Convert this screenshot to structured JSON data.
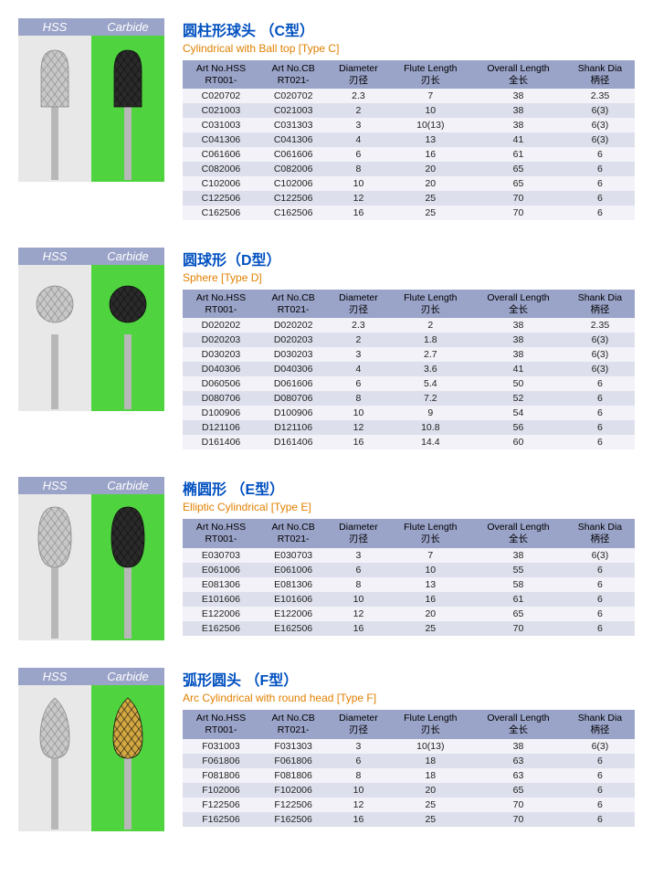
{
  "labels": {
    "hss": "HSS",
    "carbide": "Carbide"
  },
  "columns": [
    {
      "l1": "Art No.HSS",
      "l2": "RT001-"
    },
    {
      "l1": "Art No.CB",
      "l2": "RT021-"
    },
    {
      "l1": "Diameter",
      "l2": "刃径"
    },
    {
      "l1": "Flute Length",
      "l2": "刃长"
    },
    {
      "l1": "Overall Length",
      "l2": "全长"
    },
    {
      "l1": "Shank Dia",
      "l2": "柄径"
    }
  ],
  "sections": [
    {
      "title_cn": "圆柱形球头 （C型）",
      "title_en": "Cylindrical with Ball top  [Type C]",
      "shape": "cyl-ball",
      "rows": [
        [
          "C020702",
          "C020702",
          "2.3",
          "7",
          "38",
          "2.35"
        ],
        [
          "C021003",
          "C021003",
          "2",
          "10",
          "38",
          "6(3)"
        ],
        [
          "C031003",
          "C031303",
          "3",
          "10(13)",
          "38",
          "6(3)"
        ],
        [
          "C041306",
          "C041306",
          "4",
          "13",
          "41",
          "6(3)"
        ],
        [
          "C061606",
          "C061606",
          "6",
          "16",
          "61",
          "6"
        ],
        [
          "C082006",
          "C082006",
          "8",
          "20",
          "65",
          "6"
        ],
        [
          "C102006",
          "C102006",
          "10",
          "20",
          "65",
          "6"
        ],
        [
          "C122506",
          "C122506",
          "12",
          "25",
          "70",
          "6"
        ],
        [
          "C162506",
          "C162506",
          "16",
          "25",
          "70",
          "6"
        ]
      ]
    },
    {
      "title_cn": "圆球形（D型）",
      "title_en": "Sphere  [Type D]",
      "shape": "sphere",
      "rows": [
        [
          "D020202",
          "D020202",
          "2.3",
          "2",
          "38",
          "2.35"
        ],
        [
          "D020203",
          "D020203",
          "2",
          "1.8",
          "38",
          "6(3)"
        ],
        [
          "D030203",
          "D030203",
          "3",
          "2.7",
          "38",
          "6(3)"
        ],
        [
          "D040306",
          "D040306",
          "4",
          "3.6",
          "41",
          "6(3)"
        ],
        [
          "D060506",
          "D061606",
          "6",
          "5.4",
          "50",
          "6"
        ],
        [
          "D080706",
          "D080706",
          "8",
          "7.2",
          "52",
          "6"
        ],
        [
          "D100906",
          "D100906",
          "10",
          "9",
          "54",
          "6"
        ],
        [
          "D121106",
          "D121106",
          "12",
          "10.8",
          "56",
          "6"
        ],
        [
          "D161406",
          "D161406",
          "16",
          "14.4",
          "60",
          "6"
        ]
      ]
    },
    {
      "title_cn": "椭圆形 （E型）",
      "title_en": "Elliptic Cylindrical [Type E]",
      "shape": "ellipse",
      "rows": [
        [
          "E030703",
          "E030703",
          "3",
          "7",
          "38",
          "6(3)"
        ],
        [
          "E061006",
          "E061006",
          "6",
          "10",
          "55",
          "6"
        ],
        [
          "E081306",
          "E081306",
          "8",
          "13",
          "58",
          "6"
        ],
        [
          "E101606",
          "E101606",
          "10",
          "16",
          "61",
          "6"
        ],
        [
          "E122006",
          "E122006",
          "12",
          "20",
          "65",
          "6"
        ],
        [
          "E162506",
          "E162506",
          "16",
          "25",
          "70",
          "6"
        ]
      ]
    },
    {
      "title_cn": "弧形圆头 （F型）",
      "title_en": "Arc Cylindrical with round head [Type F]",
      "shape": "arc",
      "rows": [
        [
          "F031003",
          "F031303",
          "3",
          "10(13)",
          "38",
          "6(3)"
        ],
        [
          "F061806",
          "F061806",
          "6",
          "18",
          "63",
          "6"
        ],
        [
          "F081806",
          "F081806",
          "8",
          "18",
          "63",
          "6"
        ],
        [
          "F102006",
          "F102006",
          "10",
          "20",
          "65",
          "6"
        ],
        [
          "F122506",
          "F122506",
          "12",
          "25",
          "70",
          "6"
        ],
        [
          "F162506",
          "F162506",
          "16",
          "25",
          "70",
          "6"
        ]
      ]
    }
  ],
  "colors": {
    "header_bg": "#9aa3c8",
    "row_odd": "#f2f2f8",
    "row_even": "#dde0ec",
    "title_cn": "#0050c0",
    "title_en": "#e08000",
    "hss_bg": "#e8e8e8",
    "carbide_bg": "#4fd43f",
    "hss_fill": "#c8c8c8",
    "carbide_fill": "#2a2a2a",
    "gold_fill": "#d4a840",
    "shank": "#b8b8b8"
  }
}
